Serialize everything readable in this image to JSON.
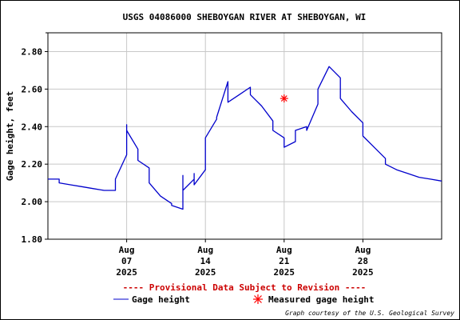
{
  "chart_data": {
    "type": "line",
    "title": "USGS 04086000 SHEBOYGAN RIVER AT SHEBOYGAN, WI",
    "ylabel": "Gage height, feet",
    "xlabel": "",
    "ylim": [
      1.8,
      2.9
    ],
    "xlim": [
      "2025-07-31",
      "2025-09-04"
    ],
    "grid": true,
    "y_ticks": [
      "1.80",
      "2.00",
      "2.20",
      "2.40",
      "2.60",
      "2.80"
    ],
    "x_ticks": [
      {
        "date": "2025-08-07",
        "month": "Aug",
        "day": "07",
        "year": "2025"
      },
      {
        "date": "2025-08-14",
        "month": "Aug",
        "day": "14",
        "year": "2025"
      },
      {
        "date": "2025-08-21",
        "month": "Aug",
        "day": "21",
        "year": "2025"
      },
      {
        "date": "2025-08-28",
        "month": "Aug",
        "day": "28",
        "year": "2025"
      }
    ],
    "series": [
      {
        "name": "Gage height",
        "color": "#0000cc",
        "points": [
          [
            "2025-07-31",
            2.12
          ],
          [
            "2025-08-01",
            2.12
          ],
          [
            "2025-08-01",
            2.1
          ],
          [
            "2025-08-02",
            2.09
          ],
          [
            "2025-08-03",
            2.08
          ],
          [
            "2025-08-04",
            2.07
          ],
          [
            "2025-08-05",
            2.06
          ],
          [
            "2025-08-06",
            2.06
          ],
          [
            "2025-08-06",
            2.12
          ],
          [
            "2025-08-07",
            2.25
          ],
          [
            "2025-08-07",
            2.41
          ],
          [
            "2025-08-07",
            2.38
          ],
          [
            "2025-08-08",
            2.28
          ],
          [
            "2025-08-08",
            2.22
          ],
          [
            "2025-08-09",
            2.18
          ],
          [
            "2025-08-09",
            2.1
          ],
          [
            "2025-08-10",
            2.03
          ],
          [
            "2025-08-11",
            1.99
          ],
          [
            "2025-08-11",
            1.98
          ],
          [
            "2025-08-12",
            1.96
          ],
          [
            "2025-08-12",
            2.14
          ],
          [
            "2025-08-12",
            2.06
          ],
          [
            "2025-08-13",
            2.12
          ],
          [
            "2025-08-13",
            2.15
          ],
          [
            "2025-08-13",
            2.09
          ],
          [
            "2025-08-14",
            2.17
          ],
          [
            "2025-08-14",
            2.34
          ],
          [
            "2025-08-15",
            2.44
          ],
          [
            "2025-08-15",
            2.45
          ],
          [
            "2025-08-16",
            2.64
          ],
          [
            "2025-08-16",
            2.53
          ],
          [
            "2025-08-17",
            2.57
          ],
          [
            "2025-08-18",
            2.61
          ],
          [
            "2025-08-18",
            2.57
          ],
          [
            "2025-08-19",
            2.51
          ],
          [
            "2025-08-20",
            2.43
          ],
          [
            "2025-08-20",
            2.38
          ],
          [
            "2025-08-21",
            2.34
          ],
          [
            "2025-08-21",
            2.29
          ],
          [
            "2025-08-22",
            2.32
          ],
          [
            "2025-08-22",
            2.38
          ],
          [
            "2025-08-23",
            2.4
          ],
          [
            "2025-08-23",
            2.38
          ],
          [
            "2025-08-24",
            2.52
          ],
          [
            "2025-08-24",
            2.6
          ],
          [
            "2025-08-25",
            2.72
          ],
          [
            "2025-08-25",
            2.72
          ],
          [
            "2025-08-26",
            2.66
          ],
          [
            "2025-08-26",
            2.55
          ],
          [
            "2025-08-27",
            2.48
          ],
          [
            "2025-08-28",
            2.42
          ],
          [
            "2025-08-28",
            2.35
          ],
          [
            "2025-08-29",
            2.29
          ],
          [
            "2025-08-30",
            2.23
          ],
          [
            "2025-08-30",
            2.2
          ],
          [
            "2025-08-31",
            2.17
          ],
          [
            "2025-09-01",
            2.15
          ],
          [
            "2025-09-02",
            2.13
          ],
          [
            "2025-09-03",
            2.12
          ],
          [
            "2025-09-04",
            2.11
          ]
        ]
      },
      {
        "name": "Measured gage height",
        "color": "#ff0000",
        "marker": "asterisk",
        "points": [
          [
            "2025-08-21",
            2.55
          ]
        ]
      }
    ],
    "provisional_notice": "---- Provisional Data Subject to Revision ----",
    "credit": "Graph courtesy of the U.S. Geological Survey"
  }
}
